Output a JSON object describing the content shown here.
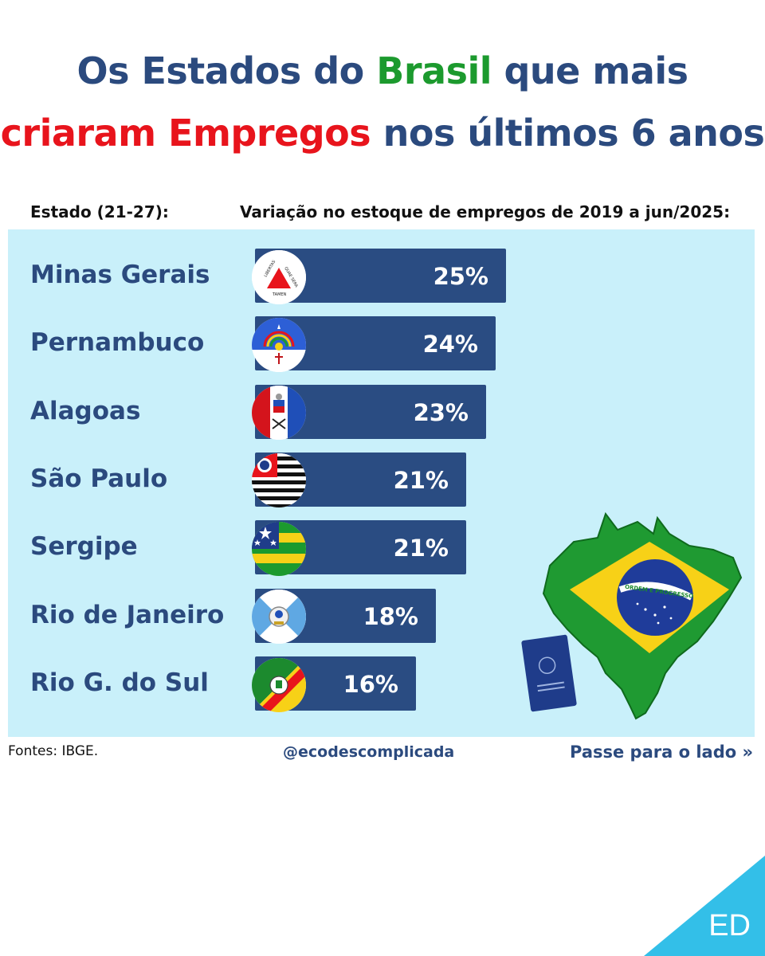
{
  "title": {
    "line1": {
      "part1": "Os Estados do ",
      "part2": "Brasil",
      "part3": " que mais"
    },
    "line2": {
      "part1": "criaram Empregos",
      "part2": " nos últimos 6 anos"
    }
  },
  "headers": {
    "state": "Estado (21-27):",
    "variation": "Variação no estoque de empregos de 2019 a jun/2025:"
  },
  "chart_data": {
    "type": "bar",
    "orientation": "horizontal",
    "categories": [
      "Minas Gerais",
      "Pernambuco",
      "Alagoas",
      "São Paulo",
      "Sergipe",
      "Rio de Janeiro",
      "Rio G. do Sul"
    ],
    "values": [
      25,
      24,
      23,
      21,
      21,
      18,
      16
    ],
    "value_labels": [
      "25%",
      "24%",
      "23%",
      "21%",
      "21%",
      "18%",
      "16%"
    ],
    "title": "Variação no estoque de empregos de 2019 a jun/2025",
    "unit": "%"
  },
  "flags": [
    "minas-gerais-flag-icon",
    "pernambuco-flag-icon",
    "alagoas-flag-icon",
    "sao-paulo-flag-icon",
    "sergipe-flag-icon",
    "rio-de-janeiro-flag-icon",
    "rio-grande-do-sul-flag-icon"
  ],
  "mg_flag_text": {
    "left": "LIBERTAS",
    "right": "QUAE SERA",
    "bottom": "TAMEN"
  },
  "illustration": {
    "banner": "ORDEM E PROGRESSO"
  },
  "footer": {
    "source": "Fontes: IBGE.",
    "handle": "@ecodescomplicada",
    "swipe": "Passe para o lado »"
  },
  "logo": "ED",
  "colors": {
    "navy": "#2b4a7e",
    "bar": "#2a4c82",
    "panel": "#c9f0fa",
    "green": "#1c9a2e",
    "red": "#e8141c",
    "corner": "#33bfe8"
  }
}
